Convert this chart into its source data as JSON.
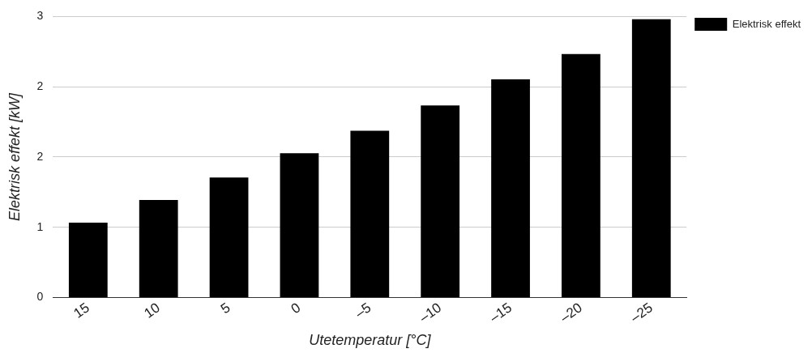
{
  "chart_data": {
    "type": "bar",
    "xlabel": "Utetemperatur [°C]",
    "ylabel": "Elektrisk effekt [kW]",
    "categories": [
      "15",
      "10",
      "5",
      "0",
      "–5",
      "–10",
      "–15",
      "–20",
      "–25"
    ],
    "series": [
      {
        "name": "Elektrisk effekt",
        "color": "#000000",
        "values": [
          0.8,
          1.04,
          1.28,
          1.54,
          1.78,
          2.05,
          2.33,
          2.6,
          2.97
        ]
      }
    ],
    "ylim": [
      0,
      3
    ],
    "yticks": [
      0,
      {
        "value": 0.75,
        "label": "1"
      },
      {
        "value": 1.5,
        "label": "2"
      },
      {
        "value": 2.25,
        "label": "2"
      },
      3
    ],
    "grid": "y",
    "legend": "top right"
  }
}
